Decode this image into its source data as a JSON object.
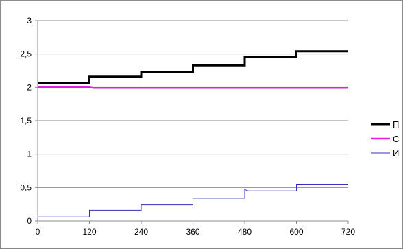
{
  "chart_data": {
    "type": "line",
    "title": "",
    "xlabel": "",
    "ylabel": "",
    "xlim": [
      0,
      720
    ],
    "ylim": [
      0,
      3
    ],
    "x_ticks": [
      0,
      120,
      240,
      360,
      480,
      600,
      720
    ],
    "y_ticks": [
      0,
      0.5,
      1,
      1.5,
      2,
      2.5,
      3
    ],
    "x_tick_labels": [
      "0",
      "120",
      "240",
      "360",
      "480",
      "600",
      "720"
    ],
    "y_tick_labels": [
      "0",
      "0,5",
      "1",
      "1,5",
      "2",
      "2,5",
      "3"
    ],
    "grid": "horizontal",
    "legend_position": "right",
    "series": [
      {
        "name": "П",
        "color": "#000000",
        "line": "thick",
        "x": [
          0,
          120,
          120,
          240,
          240,
          360,
          360,
          480,
          480,
          600,
          600,
          720
        ],
        "y": [
          2.06,
          2.06,
          2.16,
          2.16,
          2.23,
          2.23,
          2.33,
          2.33,
          2.45,
          2.45,
          2.54,
          2.54
        ]
      },
      {
        "name": "С",
        "color": "#e020e0",
        "line": "medium",
        "x": [
          0,
          120,
          130,
          720
        ],
        "y": [
          2.0,
          2.0,
          1.99,
          1.99
        ]
      },
      {
        "name": "И",
        "color": "#3333bb",
        "line": "thin",
        "x": [
          0,
          120,
          120,
          240,
          240,
          360,
          360,
          480,
          480,
          488,
          600,
          600,
          720
        ],
        "y": [
          0.06,
          0.06,
          0.16,
          0.16,
          0.24,
          0.24,
          0.34,
          0.34,
          0.47,
          0.45,
          0.45,
          0.55,
          0.55
        ]
      }
    ]
  }
}
